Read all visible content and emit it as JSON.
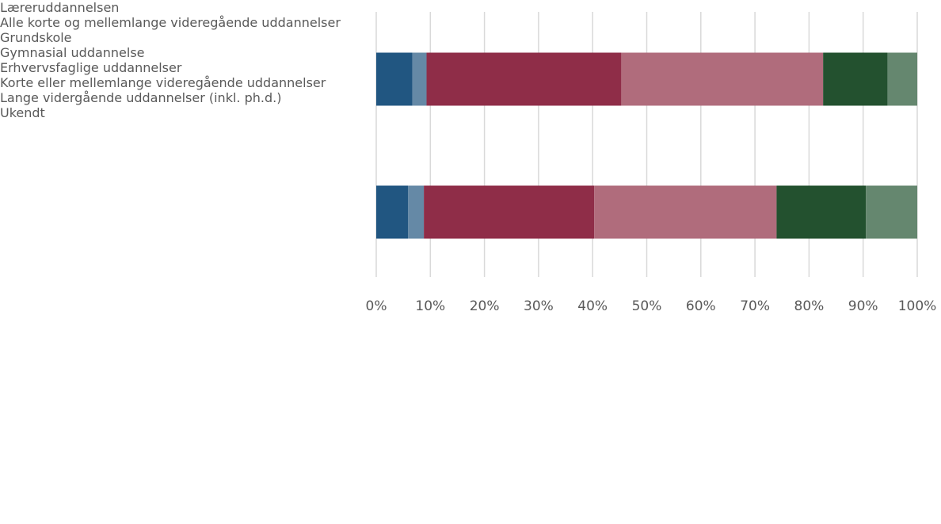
{
  "chart_data": {
    "type": "stacked-bar-horizontal",
    "categories": [
      "Læreruddannelsen",
      "Alle korte og mellemlange videregående uddannelser"
    ],
    "series": [
      {
        "name": "Grundskole",
        "color": "#215681",
        "values": [
          6.7,
          5.9
        ]
      },
      {
        "name": "Gymnasial uddannelse",
        "color": "#6589a6",
        "values": [
          2.6,
          2.9
        ]
      },
      {
        "name": "Erhvervsfaglige uddannelser",
        "color": "#8f2d48",
        "values": [
          36.0,
          31.5
        ]
      },
      {
        "name": "Korte eller mellemlange videregående uddannelser",
        "color": "#b06c7c",
        "values": [
          37.3,
          33.7
        ]
      },
      {
        "name": "Lange vidergående uddannelser (inkl. ph.d.)",
        "color": "#23512f",
        "values": [
          11.9,
          16.5
        ]
      },
      {
        "name": "Ukendt",
        "color": "#65876f",
        "values": [
          5.5,
          9.5
        ]
      }
    ],
    "xlim": [
      0,
      100
    ],
    "xticks": [
      {
        "value": 0,
        "label": "0%"
      },
      {
        "value": 10,
        "label": "10%"
      },
      {
        "value": 20,
        "label": "20%"
      },
      {
        "value": 30,
        "label": "30%"
      },
      {
        "value": 40,
        "label": "40%"
      },
      {
        "value": 50,
        "label": "50%"
      },
      {
        "value": 60,
        "label": "60%"
      },
      {
        "value": 70,
        "label": "70%"
      },
      {
        "value": 80,
        "label": "80%"
      },
      {
        "value": 90,
        "label": "90%"
      },
      {
        "value": 100,
        "label": "100%"
      }
    ],
    "grid": true,
    "legend": "bottom"
  }
}
